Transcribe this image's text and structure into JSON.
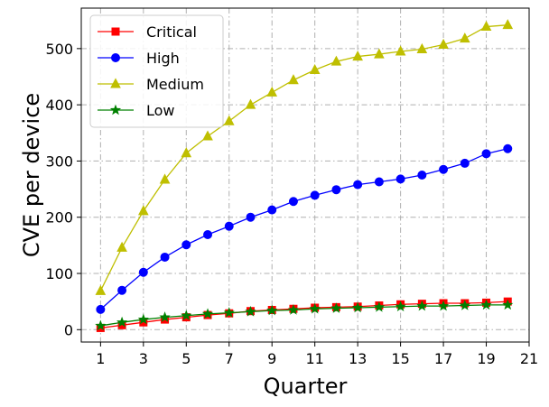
{
  "chart_data": {
    "type": "line",
    "xlabel": "Quarter",
    "ylabel": "CVE per device",
    "xlim": [
      0.1,
      21
    ],
    "ylim": [
      -22,
      572
    ],
    "x_ticks": [
      1,
      3,
      5,
      7,
      9,
      11,
      13,
      15,
      17,
      19,
      21
    ],
    "y_ticks": [
      0,
      100,
      200,
      300,
      400,
      500
    ],
    "grid": true,
    "legend_position": "upper-left",
    "x": [
      1,
      2,
      3,
      4,
      5,
      6,
      7,
      8,
      9,
      10,
      11,
      12,
      13,
      14,
      15,
      16,
      17,
      18,
      19,
      20
    ],
    "series": [
      {
        "name": "Critical",
        "color": "#ff0000",
        "marker": "square",
        "values": [
          3,
          8,
          13,
          18,
          22,
          26,
          29,
          33,
          35,
          37,
          39,
          40,
          41,
          43,
          45,
          46,
          47,
          47,
          48,
          50
        ]
      },
      {
        "name": "High",
        "color": "#0000ff",
        "marker": "circle",
        "values": [
          36,
          70,
          102,
          129,
          151,
          169,
          184,
          200,
          213,
          228,
          239,
          249,
          258,
          263,
          268,
          275,
          285,
          296,
          313,
          322
        ]
      },
      {
        "name": "Medium",
        "color": "#bfbf00",
        "marker": "triangle",
        "values": [
          69,
          146,
          211,
          267,
          314,
          344,
          371,
          400,
          422,
          444,
          462,
          477,
          486,
          490,
          495,
          499,
          507,
          518,
          539,
          542
        ]
      },
      {
        "name": "Low",
        "color": "#008000",
        "marker": "star",
        "values": [
          7,
          13,
          18,
          22,
          25,
          28,
          30,
          32,
          34,
          35,
          37,
          38,
          39,
          40,
          41,
          42,
          42,
          43,
          44,
          44
        ]
      }
    ]
  }
}
